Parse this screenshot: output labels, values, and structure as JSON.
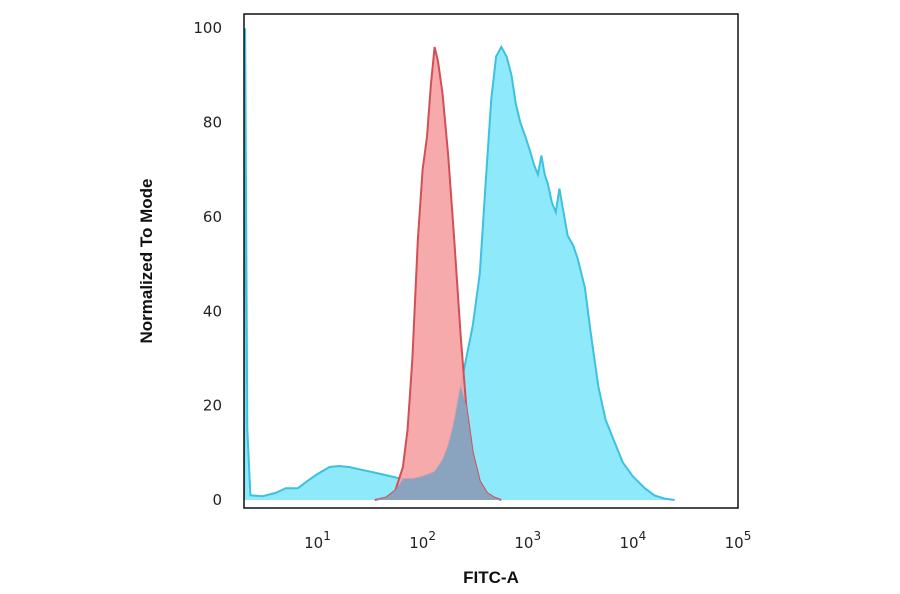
{
  "chart_data": {
    "type": "area",
    "title": "",
    "xlabel": "FITC-A",
    "ylabel": "Normalized To Mode",
    "x_scale": "log",
    "xlim": [
      2,
      100000
    ],
    "ylim": [
      0,
      103
    ],
    "grid": false,
    "legend": "none",
    "x_ticks": [
      {
        "value": 10,
        "base": "10",
        "exp": "1"
      },
      {
        "value": 100,
        "base": "10",
        "exp": "2"
      },
      {
        "value": 1000,
        "base": "10",
        "exp": "3"
      },
      {
        "value": 10000,
        "base": "10",
        "exp": "4"
      },
      {
        "value": 100000,
        "base": "10",
        "exp": "5"
      }
    ],
    "y_ticks": [
      {
        "value": 0,
        "label": "0"
      },
      {
        "value": 20,
        "label": "20"
      },
      {
        "value": 40,
        "label": "40"
      },
      {
        "value": 60,
        "label": "60"
      },
      {
        "value": 80,
        "label": "80"
      },
      {
        "value": 100,
        "label": "100"
      }
    ],
    "series": [
      {
        "color_fill": "#8ee9fb",
        "color_line": "#3cc1e0",
        "points": [
          [
            2,
            0
          ],
          [
            2.05,
            100
          ],
          [
            2.15,
            15
          ],
          [
            2.3,
            1
          ],
          [
            3,
            0.8
          ],
          [
            4,
            1.5
          ],
          [
            5,
            2.5
          ],
          [
            6.5,
            2.5
          ],
          [
            8,
            4
          ],
          [
            10,
            5.5
          ],
          [
            13,
            7
          ],
          [
            16,
            7.2
          ],
          [
            20,
            7
          ],
          [
            25,
            6.5
          ],
          [
            32,
            6
          ],
          [
            40,
            5.5
          ],
          [
            50,
            5
          ],
          [
            63,
            4.5
          ],
          [
            80,
            4.5
          ],
          [
            100,
            5
          ],
          [
            130,
            6
          ],
          [
            160,
            9
          ],
          [
            190,
            14
          ],
          [
            220,
            22
          ],
          [
            260,
            30
          ],
          [
            300,
            37
          ],
          [
            350,
            48
          ],
          [
            400,
            68
          ],
          [
            450,
            85
          ],
          [
            500,
            94
          ],
          [
            560,
            96
          ],
          [
            630,
            94
          ],
          [
            700,
            90
          ],
          [
            770,
            84
          ],
          [
            850,
            80
          ],
          [
            950,
            77
          ],
          [
            1050,
            74
          ],
          [
            1150,
            71
          ],
          [
            1250,
            69
          ],
          [
            1350,
            73
          ],
          [
            1450,
            69
          ],
          [
            1550,
            67
          ],
          [
            1700,
            63
          ],
          [
            1850,
            61
          ],
          [
            2000,
            66
          ],
          [
            2150,
            62
          ],
          [
            2400,
            56
          ],
          [
            2700,
            54
          ],
          [
            3000,
            51
          ],
          [
            3500,
            45
          ],
          [
            4000,
            35
          ],
          [
            4700,
            24
          ],
          [
            5500,
            17
          ],
          [
            6500,
            13
          ],
          [
            8000,
            8
          ],
          [
            10000,
            5
          ],
          [
            13000,
            2.5
          ],
          [
            16000,
            1
          ],
          [
            20000,
            0.3
          ],
          [
            25000,
            0
          ]
        ]
      },
      {
        "color_fill": "#f5a3a5",
        "color_line": "#d24f55",
        "points": [
          [
            35,
            0
          ],
          [
            45,
            0.5
          ],
          [
            55,
            2
          ],
          [
            65,
            7
          ],
          [
            72,
            15
          ],
          [
            80,
            30
          ],
          [
            90,
            55
          ],
          [
            100,
            70
          ],
          [
            110,
            77
          ],
          [
            120,
            88
          ],
          [
            130,
            96
          ],
          [
            140,
            93
          ],
          [
            155,
            86
          ],
          [
            175,
            73
          ],
          [
            200,
            55
          ],
          [
            230,
            35
          ],
          [
            260,
            20
          ],
          [
            300,
            10
          ],
          [
            350,
            4
          ],
          [
            410,
            1.5
          ],
          [
            480,
            0.5
          ],
          [
            560,
            0
          ]
        ]
      }
    ]
  }
}
